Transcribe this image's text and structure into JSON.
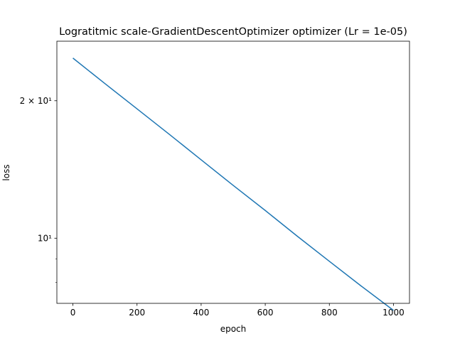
{
  "chart_data": {
    "type": "line",
    "title": "Logratitmic scale-GradientDescentOptimizer optimizer (Lr = 1e-05)",
    "xlabel": "epoch",
    "ylabel": "loss",
    "xlim": [
      -50,
      1050
    ],
    "ylim": [
      7.2,
      27
    ],
    "yscale": "log",
    "grid": false,
    "legend": "none",
    "x_ticks": [
      0,
      200,
      400,
      600,
      800,
      1000
    ],
    "x_tick_labels": [
      "0",
      "200",
      "400",
      "600",
      "800",
      "1000"
    ],
    "y_major_ticks": [
      10,
      20
    ],
    "y_major_labels": [
      "10¹",
      "2 × 10¹"
    ],
    "y_minor_ticks": [
      7,
      8,
      9,
      30
    ],
    "series": [
      {
        "color": "#1f77b4",
        "x": [
          0,
          100,
          200,
          300,
          400,
          500,
          600,
          700,
          800,
          900,
          1000
        ],
        "y": [
          24.8,
          21.8,
          19.2,
          16.9,
          14.85,
          13.05,
          11.5,
          10.1,
          8.9,
          7.85,
          6.95
        ]
      }
    ]
  }
}
